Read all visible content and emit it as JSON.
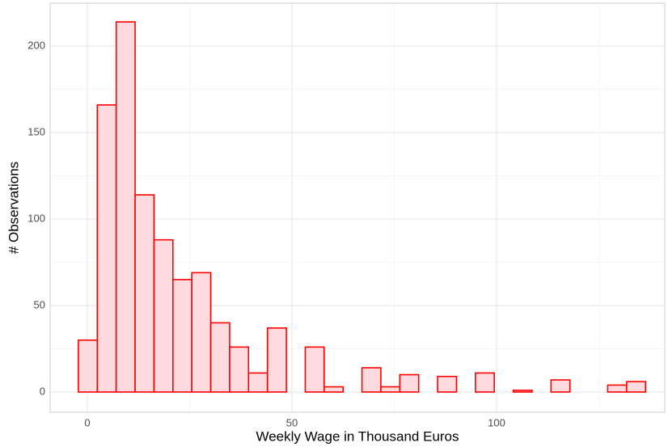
{
  "chart_data": {
    "type": "histogram",
    "x_label": "Weekly Wage in Thousand Euros",
    "y_label": "# Observations",
    "bins": [
      -2.2,
      2.42,
      7.04,
      11.66,
      16.28,
      20.9,
      25.52,
      30.14,
      34.76,
      39.38,
      44.0,
      48.62,
      53.24,
      57.86,
      62.48,
      67.1,
      71.72,
      76.34,
      80.96,
      85.58,
      90.2,
      94.82,
      99.44,
      104.06,
      108.68,
      113.3,
      117.92,
      122.54,
      127.16,
      131.78,
      136.4
    ],
    "counts": [
      30,
      166,
      214,
      114,
      88,
      65,
      69,
      40,
      26,
      11,
      37,
      0,
      26,
      3,
      0,
      14,
      3,
      10,
      0,
      9,
      0,
      11,
      0,
      1,
      0,
      7,
      0,
      0,
      4,
      6
    ],
    "fill": "#ffdadf",
    "color": "#ff0000",
    "xlim": [
      -9.1,
      141.1
    ],
    "xticks": [
      0,
      50,
      100
    ],
    "ylim": [
      -11.7,
      224.8
    ],
    "yticks": [
      0,
      50,
      100,
      150,
      200
    ],
    "grid": true
  }
}
